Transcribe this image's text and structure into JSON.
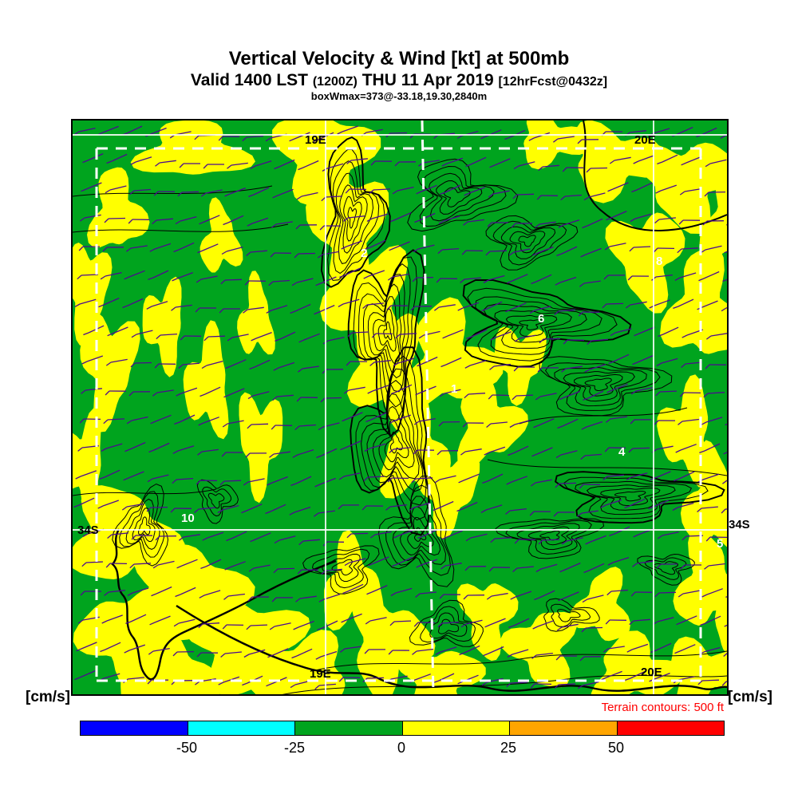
{
  "header": {
    "title": "Vertical Velocity & Wind [kt] at 500mb",
    "valid_main": "Valid 1400 LST",
    "valid_zulu": "(1200Z)",
    "valid_date": "THU 11 Apr 2019",
    "valid_fcst": "[12hrFcst@0432z]",
    "box_info": "boxWmax=373@-33.18,19.30,2840m"
  },
  "map": {
    "labels": {
      "top_left_lon": "19E",
      "top_right_lon": "20E",
      "bottom_left_lon": "19E",
      "bottom_right_lon": "20E",
      "left_lat": "34S",
      "right_lat": "34S"
    },
    "numbers": [
      "2",
      "8",
      "6",
      "1",
      "4",
      "10",
      "5"
    ],
    "colors": {
      "updraft_fill": "#ffff00",
      "background_fill": "#00a41e",
      "wind_barb": "#4b0b8f",
      "terrain_contour": "#000000",
      "grid_line": "#ffffff"
    }
  },
  "footer": {
    "units_left": "[cm/s]",
    "units_right": "[cm/s]",
    "terrain_note": "Terrain contours: 500 ft"
  },
  "colorbar": {
    "ticks": [
      "-50",
      "-25",
      "0",
      "25",
      "50"
    ],
    "colors": [
      "#0000ff",
      "#00ffff",
      "#00a41e",
      "#ffff00",
      "#ffa500",
      "#ff0000"
    ],
    "value_range": [
      -75,
      75
    ],
    "units": "cm/s"
  }
}
